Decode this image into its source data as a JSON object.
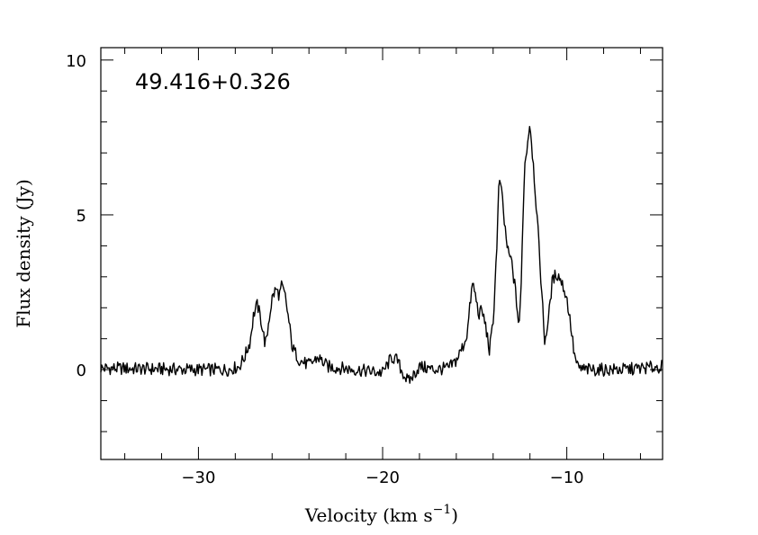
{
  "chart_data": {
    "type": "line",
    "title": "49.416+0.326",
    "xlabel": "Velocity (km s",
    "xlabel_sup": "−1",
    "xlabel_close": ")",
    "ylabel": "Flux density (Jy)",
    "xlim": [
      -35.3,
      -4.8
    ],
    "ylim": [
      -2.9,
      10.4
    ],
    "x_major_ticks": [
      -30,
      -20,
      -10
    ],
    "x_tick_labels": [
      "−30",
      "−20",
      "−10"
    ],
    "x_minor_step": 2,
    "y_major_ticks": [
      0,
      5,
      10
    ],
    "y_tick_labels": [
      "0",
      "5",
      "10"
    ],
    "y_minor_step": 1,
    "grid": false,
    "series": [
      {
        "points": [
          [
            -35.3,
            0.05
          ],
          [
            -30,
            0.0
          ],
          [
            -28.4,
            0.0
          ],
          [
            -27.8,
            0.1
          ],
          [
            -27.5,
            0.4
          ],
          [
            -27.2,
            0.9
          ],
          [
            -27.0,
            1.8
          ],
          [
            -26.8,
            2.1
          ],
          [
            -26.6,
            1.6
          ],
          [
            -26.4,
            0.9
          ],
          [
            -26.3,
            0.9
          ],
          [
            -26.2,
            1.5
          ],
          [
            -26.0,
            2.3
          ],
          [
            -25.8,
            2.6
          ],
          [
            -25.6,
            2.4
          ],
          [
            -25.5,
            2.7
          ],
          [
            -25.3,
            2.4
          ],
          [
            -25.1,
            1.6
          ],
          [
            -24.9,
            0.7
          ],
          [
            -24.7,
            0.5
          ],
          [
            -24.5,
            0.3
          ],
          [
            -24.0,
            0.15
          ],
          [
            -23.5,
            0.4
          ],
          [
            -23.0,
            0.1
          ],
          [
            -21.5,
            0.0
          ],
          [
            -20.0,
            -0.1
          ],
          [
            -19.8,
            0.1
          ],
          [
            -19.5,
            0.4
          ],
          [
            -19.2,
            0.3
          ],
          [
            -19.0,
            0.0
          ],
          [
            -18.6,
            -0.4
          ],
          [
            -18.0,
            0.1
          ],
          [
            -17.2,
            0.0
          ],
          [
            -16.4,
            0.05
          ],
          [
            -16.0,
            0.3
          ],
          [
            -15.6,
            0.8
          ],
          [
            -15.4,
            1.2
          ],
          [
            -15.2,
            2.4
          ],
          [
            -15.1,
            2.8
          ],
          [
            -14.9,
            2.2
          ],
          [
            -14.8,
            1.8
          ],
          [
            -14.6,
            1.9
          ],
          [
            -14.4,
            1.4
          ],
          [
            -14.2,
            0.6
          ],
          [
            -14.0,
            1.5
          ],
          [
            -13.8,
            4.0
          ],
          [
            -13.7,
            5.8
          ],
          [
            -13.6,
            6.1
          ],
          [
            -13.4,
            4.8
          ],
          [
            -13.2,
            3.8
          ],
          [
            -13.0,
            3.5
          ],
          [
            -12.8,
            2.6
          ],
          [
            -12.6,
            1.4
          ],
          [
            -12.5,
            2.2
          ],
          [
            -12.4,
            4.5
          ],
          [
            -12.3,
            6.5
          ],
          [
            -12.2,
            7.0
          ],
          [
            -12.1,
            7.5
          ],
          [
            -12.0,
            8.0
          ],
          [
            -11.8,
            6.5
          ],
          [
            -11.6,
            4.8
          ],
          [
            -11.4,
            2.9
          ],
          [
            -11.2,
            0.9
          ],
          [
            -11.0,
            1.6
          ],
          [
            -10.8,
            2.8
          ],
          [
            -10.6,
            3.1
          ],
          [
            -10.4,
            3.0
          ],
          [
            -10.2,
            2.7
          ],
          [
            -10.0,
            2.3
          ],
          [
            -9.8,
            1.5
          ],
          [
            -9.6,
            0.5
          ],
          [
            -9.4,
            0.05
          ],
          [
            -9.0,
            0.0
          ],
          [
            -7.0,
            0.0
          ],
          [
            -4.8,
            0.1
          ]
        ]
      }
    ]
  }
}
